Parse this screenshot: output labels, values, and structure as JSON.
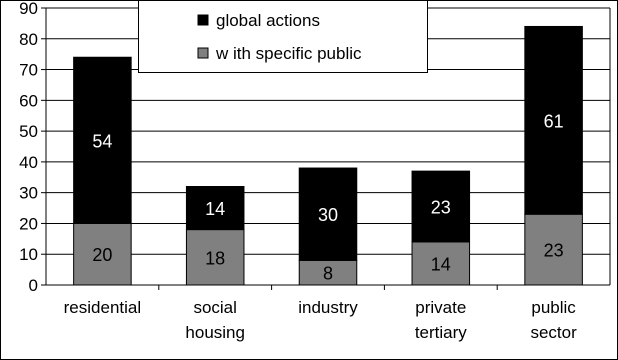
{
  "chart_data": {
    "type": "bar",
    "stacked": true,
    "categories": [
      [
        "residential"
      ],
      [
        "social",
        "housing"
      ],
      [
        "industry"
      ],
      [
        "private",
        "tertiary"
      ],
      [
        "public",
        "sector"
      ]
    ],
    "series": [
      {
        "name": "w ith specific public",
        "values": [
          20,
          18,
          8,
          14,
          23
        ],
        "color": "#808080",
        "label_color": "#000000"
      },
      {
        "name": "global actions",
        "values": [
          54,
          14,
          30,
          23,
          61
        ],
        "color": "#000000",
        "label_color": "#ffffff"
      }
    ],
    "legend_order": [
      1,
      0
    ],
    "legend_position": "top-center",
    "ylim": [
      0,
      90
    ],
    "y_ticks": [
      0,
      10,
      20,
      30,
      40,
      50,
      60,
      70,
      80,
      90
    ],
    "grid": true,
    "title": "",
    "xlabel": "",
    "ylabel": ""
  }
}
